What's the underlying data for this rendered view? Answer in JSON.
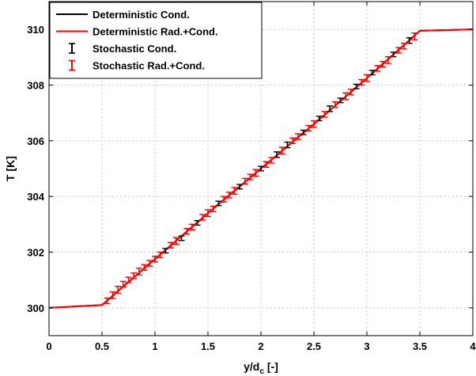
{
  "chart_data": {
    "type": "line",
    "xlabel": "y/d",
    "xlabel_sub": "c",
    "xlabel_unit": "[-]",
    "ylabel": "T [K]",
    "xlim": [
      0,
      4
    ],
    "ylim": [
      299,
      311
    ],
    "xticks": [
      0,
      0.5,
      1,
      1.5,
      2,
      2.5,
      3,
      3.5,
      4
    ],
    "xtick_labels": [
      "0",
      "0.5",
      "1",
      "1.5",
      "2",
      "2.5",
      "3",
      "3.5",
      "4"
    ],
    "yticks": [
      300,
      302,
      304,
      306,
      308,
      310
    ],
    "ytick_labels": [
      "300",
      "302",
      "304",
      "306",
      "308",
      "310"
    ],
    "grid": true,
    "legend_position": "top-left",
    "colors": {
      "deterministic_cond": "#000000",
      "deterministic_rad_cond": "#ff0000",
      "stochastic_cond": "#000000",
      "stochastic_rad_cond": "#ff0000"
    },
    "series": [
      {
        "name": "Deterministic Cond.",
        "style": "line",
        "x": [
          0,
          0.5,
          1.0,
          1.5,
          2.0,
          2.5,
          3.0,
          3.5,
          4.0
        ],
        "y": [
          300.0,
          300.1,
          301.75,
          303.4,
          305.0,
          306.6,
          308.25,
          309.95,
          310.0
        ]
      },
      {
        "name": "Deterministic Rad.+Cond.",
        "style": "line",
        "x": [
          0,
          0.5,
          1.0,
          1.5,
          2.0,
          2.5,
          3.0,
          3.5,
          4.0
        ],
        "y": [
          300.0,
          300.1,
          301.75,
          303.4,
          305.0,
          306.6,
          308.25,
          309.95,
          310.0
        ]
      },
      {
        "name": "Stochastic Cond.",
        "style": "errorbar",
        "x": [
          1.1,
          1.25,
          1.4,
          1.6,
          1.8,
          2.0,
          2.15,
          2.25,
          2.4,
          2.55,
          2.65,
          2.75,
          2.9,
          3.05,
          3.25,
          3.4
        ],
        "y": [
          302.05,
          302.5,
          303.05,
          303.75,
          304.35,
          305.0,
          305.5,
          305.85,
          306.3,
          306.8,
          307.15,
          307.45,
          307.95,
          308.45,
          309.1,
          309.6
        ],
        "err": [
          0.08,
          0.08,
          0.08,
          0.08,
          0.08,
          0.08,
          0.1,
          0.1,
          0.08,
          0.08,
          0.1,
          0.08,
          0.08,
          0.08,
          0.08,
          0.1
        ]
      },
      {
        "name": "Stochastic Rad.+Cond.",
        "style": "errorbar",
        "x": [
          0.55,
          0.6,
          0.65,
          0.7,
          0.75,
          0.8,
          0.85,
          0.9,
          0.95,
          1.0,
          1.05,
          1.15,
          1.2,
          1.3,
          1.35,
          1.45,
          1.5,
          1.55,
          1.65,
          1.7,
          1.75,
          1.85,
          1.9,
          1.95,
          2.05,
          2.1,
          2.2,
          2.3,
          2.35,
          2.45,
          2.5,
          2.6,
          2.7,
          2.8,
          2.85,
          2.95,
          3.0,
          3.1,
          3.15,
          3.2,
          3.3,
          3.35,
          3.45
        ],
        "y": [
          300.25,
          300.45,
          300.65,
          300.85,
          301.0,
          301.15,
          301.3,
          301.45,
          301.6,
          301.75,
          301.9,
          302.25,
          302.4,
          302.75,
          302.9,
          303.25,
          303.4,
          303.55,
          303.9,
          304.05,
          304.2,
          304.55,
          304.7,
          304.85,
          305.15,
          305.3,
          305.65,
          306.0,
          306.15,
          306.45,
          306.6,
          306.95,
          307.3,
          307.6,
          307.75,
          308.1,
          308.25,
          308.6,
          308.75,
          308.9,
          309.25,
          309.4,
          309.75
        ],
        "err": [
          0.1,
          0.12,
          0.12,
          0.1,
          0.1,
          0.1,
          0.12,
          0.1,
          0.1,
          0.1,
          0.1,
          0.1,
          0.12,
          0.1,
          0.1,
          0.1,
          0.12,
          0.1,
          0.1,
          0.1,
          0.12,
          0.1,
          0.1,
          0.12,
          0.1,
          0.1,
          0.12,
          0.1,
          0.1,
          0.1,
          0.12,
          0.1,
          0.1,
          0.12,
          0.1,
          0.1,
          0.12,
          0.1,
          0.1,
          0.12,
          0.1,
          0.1,
          0.12
        ]
      }
    ]
  }
}
